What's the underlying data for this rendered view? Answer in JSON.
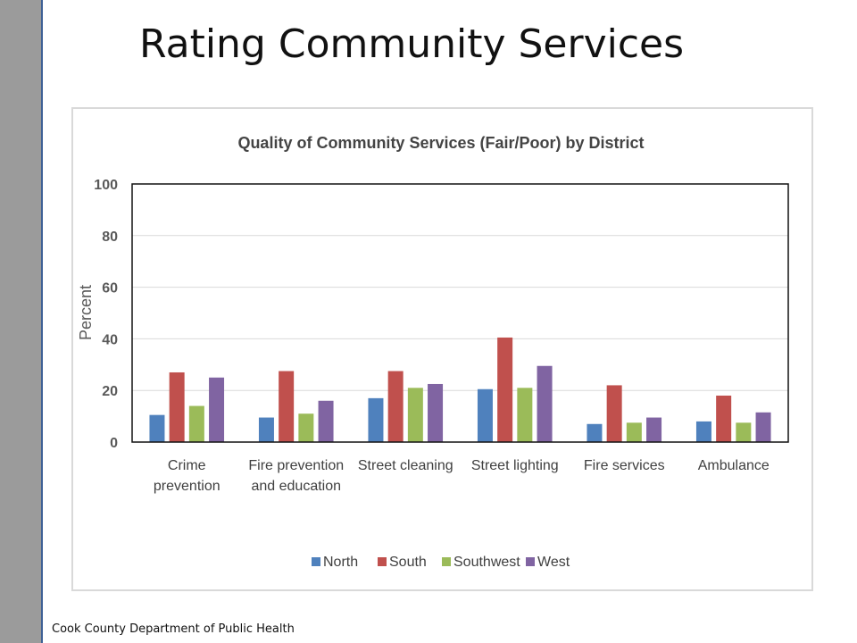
{
  "slide": {
    "title": "Rating Community Services",
    "footer": "Cook County Department of Public Health"
  },
  "chart_data": {
    "type": "bar",
    "title": "Quality of Community Services (Fair/Poor) by District",
    "xlabel": "",
    "ylabel": "Percent",
    "ylim": [
      0,
      100
    ],
    "yticks": [
      0,
      20,
      40,
      60,
      80,
      100
    ],
    "grid": true,
    "legend_position": "bottom",
    "categories": [
      [
        "Crime",
        "prevention"
      ],
      [
        "Fire prevention",
        "and education"
      ],
      [
        "Street cleaning"
      ],
      [
        "Street lighting"
      ],
      [
        "Fire services"
      ],
      [
        "Ambulance"
      ]
    ],
    "series": [
      {
        "name": "North",
        "color": "#4f81bd",
        "values": [
          10.5,
          9.5,
          17,
          20.5,
          7,
          8
        ]
      },
      {
        "name": "South",
        "color": "#c0504d",
        "values": [
          27,
          27.5,
          27.5,
          40.5,
          22,
          18
        ]
      },
      {
        "name": "Southwest",
        "color": "#9bbb59",
        "values": [
          14,
          11,
          21,
          21,
          7.5,
          7.5
        ]
      },
      {
        "name": "West",
        "color": "#8064a2",
        "values": [
          25,
          16,
          22.5,
          29.5,
          9.5,
          11.5
        ]
      }
    ]
  }
}
